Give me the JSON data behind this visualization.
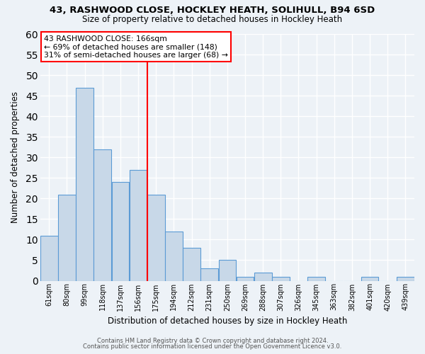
{
  "title1": "43, RASHWOOD CLOSE, HOCKLEY HEATH, SOLIHULL, B94 6SD",
  "title2": "Size of property relative to detached houses in Hockley Heath",
  "xlabel": "Distribution of detached houses by size in Hockley Heath",
  "ylabel": "Number of detached properties",
  "bar_labels": [
    "61sqm",
    "80sqm",
    "99sqm",
    "118sqm",
    "137sqm",
    "156sqm",
    "175sqm",
    "194sqm",
    "212sqm",
    "231sqm",
    "250sqm",
    "269sqm",
    "288sqm",
    "307sqm",
    "326sqm",
    "345sqm",
    "363sqm",
    "382sqm",
    "401sqm",
    "420sqm",
    "439sqm"
  ],
  "bar_heights": [
    11,
    21,
    47,
    32,
    24,
    27,
    21,
    12,
    8,
    3,
    5,
    1,
    2,
    1,
    0,
    1,
    0,
    0,
    1,
    0,
    1
  ],
  "bar_color": "#c8d8e8",
  "bar_edge_color": "#5b9bd5",
  "vline_color": "red",
  "ylim": [
    0,
    60
  ],
  "yticks": [
    0,
    5,
    10,
    15,
    20,
    25,
    30,
    35,
    40,
    45,
    50,
    55,
    60
  ],
  "annotation_line1": "43 RASHWOOD CLOSE: 166sqm",
  "annotation_line2": "← 69% of detached houses are smaller (148)",
  "annotation_line3": "31% of semi-detached houses are larger (68) →",
  "footer1": "Contains HM Land Registry data © Crown copyright and database right 2024.",
  "footer2": "Contains public sector information licensed under the Open Government Licence v3.0.",
  "bg_color": "#edf2f7",
  "grid_color": "white"
}
